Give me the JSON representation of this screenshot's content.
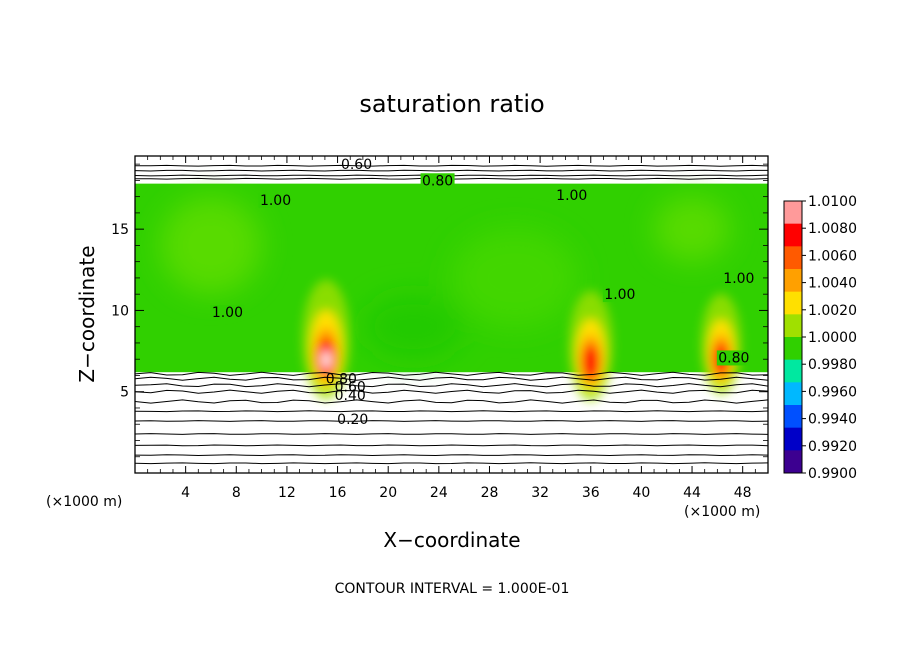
{
  "chart_data": {
    "type": "heatmap",
    "title": "saturation ratio",
    "xlabel": "X−coordinate",
    "ylabel": "Z−coordinate",
    "x_unit": "(×1000 m)",
    "z_unit": "(×1000 m)",
    "xlim": [
      0,
      50
    ],
    "ylim": [
      0,
      19.5
    ],
    "x_ticks": [
      4,
      8,
      12,
      16,
      20,
      24,
      28,
      32,
      36,
      40,
      44,
      48
    ],
    "x_tick_labels": [
      "4",
      "8",
      "12",
      "16",
      "20",
      "24",
      "28",
      "32",
      "36",
      "40",
      "44",
      "48"
    ],
    "y_ticks": [
      5,
      10,
      15
    ],
    "y_tick_labels": [
      "5",
      "10",
      "15"
    ],
    "colorbar": {
      "min": 0.99,
      "max": 1.01,
      "labels": [
        "1.0100",
        "1.0080",
        "1.0060",
        "1.0040",
        "1.0020",
        "1.0000",
        "0.9980",
        "0.9960",
        "0.9940",
        "0.9920",
        "0.9900"
      ],
      "colors": [
        "#ff9a9a",
        "#ff0000",
        "#ff5a00",
        "#ffa000",
        "#ffe000",
        "#a0e000",
        "#30d000",
        "#00e8a0",
        "#00b8ff",
        "#0050ff",
        "#0000c8",
        "#3c0090"
      ]
    },
    "moist_region": {
      "x": [
        0,
        50
      ],
      "z": [
        6.2,
        17.8
      ]
    },
    "contour_lines_z": [
      0.6,
      1.1,
      1.7,
      2.4,
      3.2,
      3.8,
      4.4,
      5.0,
      5.4,
      5.8,
      6.1,
      18.1,
      18.3,
      18.6,
      18.9
    ],
    "contour_labels": [
      {
        "text": "0.60",
        "x": 17.5,
        "z": 18.7
      },
      {
        "text": "0.80",
        "x": 23.9,
        "z": 17.7
      },
      {
        "text": "1.00",
        "x": 11.1,
        "z": 16.5
      },
      {
        "text": "1.00",
        "x": 34.5,
        "z": 16.8
      },
      {
        "text": "1.00",
        "x": 7.3,
        "z": 9.6
      },
      {
        "text": "1.00",
        "x": 38.3,
        "z": 10.7
      },
      {
        "text": "1.00",
        "x": 47.7,
        "z": 11.7
      },
      {
        "text": "0.80",
        "x": 47.3,
        "z": 6.8
      },
      {
        "text": "0.80",
        "x": 16.3,
        "z": 5.5
      },
      {
        "text": "0.60",
        "x": 17.0,
        "z": 5.0
      },
      {
        "text": "0.40",
        "x": 17.0,
        "z": 4.5
      },
      {
        "text": "0.20",
        "x": 17.2,
        "z": 3.0
      }
    ],
    "hotspots": [
      {
        "x": 15.1,
        "z": 7.1,
        "peak": 1.01
      },
      {
        "x": 36.0,
        "z": 6.8,
        "peak": 1.008
      },
      {
        "x": 46.3,
        "z": 7.0,
        "peak": 1.006
      }
    ],
    "grid": false,
    "legend": "right"
  },
  "footer": "CONTOUR INTERVAL = 1.000E-01"
}
